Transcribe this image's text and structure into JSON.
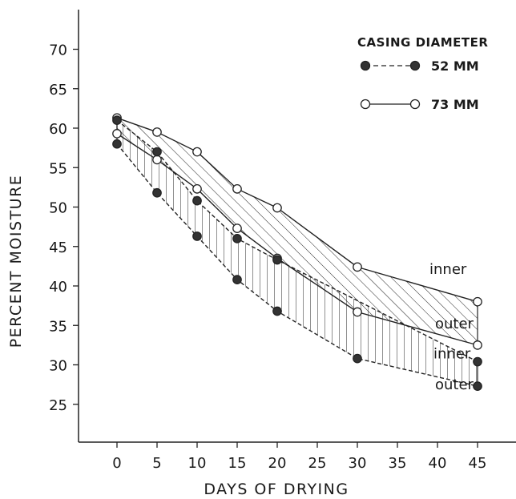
{
  "chart_data": {
    "type": "line",
    "xlabel": "DAYS OF DRYING",
    "ylabel": "PERCENT MOISTURE",
    "xlim": [
      -4,
      48
    ],
    "ylim": [
      20,
      75
    ],
    "x_ticks": [
      0,
      5,
      10,
      15,
      20,
      25,
      30,
      35,
      40,
      45
    ],
    "y_ticks": [
      25,
      30,
      35,
      40,
      45,
      50,
      55,
      60,
      65,
      70
    ],
    "grid": false,
    "legend": {
      "title": "CASING DIAMETER",
      "position": "top-right",
      "entries": [
        {
          "label": "52 MM",
          "marker": "filled",
          "line": "dashed"
        },
        {
          "label": "73 MM",
          "marker": "open",
          "line": "solid"
        }
      ]
    },
    "series": [
      {
        "name": "73 MM inner",
        "casing": "73 MM",
        "layer": "inner",
        "marker": "open",
        "x": [
          0,
          5,
          10,
          15,
          20,
          30,
          45
        ],
        "y": [
          61.3,
          59.5,
          57,
          52.3,
          49.9,
          42.4,
          38
        ]
      },
      {
        "name": "73 MM outer",
        "casing": "73 MM",
        "layer": "outer",
        "marker": "open",
        "x": [
          0,
          5,
          10,
          15,
          20,
          30,
          45
        ],
        "y": [
          59.3,
          56,
          52.3,
          47.3,
          43.5,
          36.7,
          32.5
        ]
      },
      {
        "name": "52 MM inner",
        "casing": "52 MM",
        "layer": "inner",
        "marker": "filled",
        "x": [
          0,
          5,
          10,
          15,
          20,
          45
        ],
        "y": [
          61,
          57,
          50.8,
          46,
          43.3,
          30.4
        ]
      },
      {
        "name": "52 MM outer",
        "casing": "52 MM",
        "layer": "outer",
        "marker": "filled",
        "x": [
          0,
          5,
          10,
          15,
          20,
          30,
          45
        ],
        "y": [
          58,
          51.8,
          46.3,
          40.8,
          36.8,
          30.8,
          27.3
        ]
      }
    ],
    "annotations": [
      {
        "text": "inner",
        "x": 39,
        "y": 41.5
      },
      {
        "text": "outer",
        "x": 39.7,
        "y": 34.6
      },
      {
        "text": "inner",
        "x": 39.5,
        "y": 30.8
      },
      {
        "text": "outer",
        "x": 39.7,
        "y": 26.9
      }
    ]
  }
}
